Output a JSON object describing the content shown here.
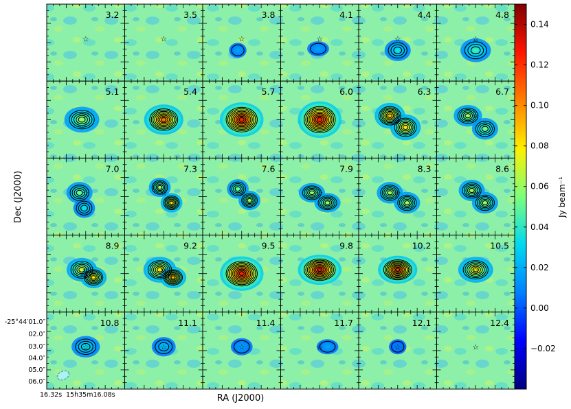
{
  "figure": {
    "xlabel": "RA (J2000)",
    "ylabel": "Dec (J2000)",
    "colorbar_label": "Jy beam⁻¹",
    "ra_ticks": [
      "16.32s",
      "15h35m16.08s"
    ],
    "dec_ticks": [
      "-25°44′01.0″",
      "02.0″",
      "03.0″",
      "04.0″",
      "05.0″",
      "06.0″"
    ],
    "colorbar_ticks": [
      "0.14",
      "0.12",
      "0.10",
      "0.08",
      "0.06",
      "0.04",
      "0.02",
      "0.00",
      "−0.02"
    ],
    "colorbar_values": [
      0.14,
      0.12,
      0.1,
      0.08,
      0.06,
      0.04,
      0.02,
      0.0,
      -0.02
    ],
    "colorbar_range": [
      -0.04,
      0.15
    ],
    "colormap": [
      "#00007f",
      "#0000ff",
      "#0080ff",
      "#00d8f0",
      "#7dff7a",
      "#ffef00",
      "#ff8000",
      "#ff1400",
      "#7f0000"
    ],
    "background_color": "#8cf0a8",
    "contour_color": "#000000"
  },
  "panels": [
    {
      "label": "3.2",
      "peak": 0.0,
      "emission": []
    },
    {
      "label": "3.5",
      "peak": 0.0,
      "emission": []
    },
    {
      "label": "3.8",
      "peak": 0.02,
      "emission": [
        {
          "dx": -0.05,
          "dy": -0.1,
          "rx": 0.08,
          "ry": 0.07,
          "amp": 0.02
        }
      ]
    },
    {
      "label": "4.1",
      "peak": 0.02,
      "emission": [
        {
          "dx": -0.02,
          "dy": -0.08,
          "rx": 0.1,
          "ry": 0.07,
          "amp": 0.02
        }
      ]
    },
    {
      "label": "4.4",
      "peak": 0.04,
      "emission": [
        {
          "dx": 0.0,
          "dy": -0.1,
          "rx": 0.12,
          "ry": 0.1,
          "amp": 0.04
        }
      ]
    },
    {
      "label": "4.8",
      "peak": 0.05,
      "emission": [
        {
          "dx": 0.0,
          "dy": -0.1,
          "rx": 0.14,
          "ry": 0.11,
          "amp": 0.05
        }
      ]
    },
    {
      "label": "5.1",
      "peak": 0.07,
      "emission": [
        {
          "dx": -0.05,
          "dy": 0.0,
          "rx": 0.16,
          "ry": 0.12,
          "amp": 0.07
        }
      ]
    },
    {
      "label": "5.4",
      "peak": 0.12,
      "emission": [
        {
          "dx": 0.0,
          "dy": 0.0,
          "rx": 0.18,
          "ry": 0.14,
          "amp": 0.12
        }
      ]
    },
    {
      "label": "5.7",
      "peak": 0.14,
      "emission": [
        {
          "dx": 0.0,
          "dy": 0.0,
          "rx": 0.2,
          "ry": 0.16,
          "amp": 0.14
        }
      ]
    },
    {
      "label": "6.0",
      "peak": 0.14,
      "emission": [
        {
          "dx": 0.0,
          "dy": 0.0,
          "rx": 0.2,
          "ry": 0.17,
          "amp": 0.14
        }
      ]
    },
    {
      "label": "6.3",
      "peak": 0.1,
      "emission": [
        {
          "dx": -0.1,
          "dy": 0.05,
          "rx": 0.14,
          "ry": 0.12,
          "amp": 0.1
        },
        {
          "dx": 0.1,
          "dy": -0.1,
          "rx": 0.14,
          "ry": 0.12,
          "amp": 0.09
        }
      ]
    },
    {
      "label": "6.7",
      "peak": 0.07,
      "emission": [
        {
          "dx": -0.1,
          "dy": 0.05,
          "rx": 0.13,
          "ry": 0.1,
          "amp": 0.07
        },
        {
          "dx": 0.12,
          "dy": -0.12,
          "rx": 0.12,
          "ry": 0.1,
          "amp": 0.06
        }
      ]
    },
    {
      "label": "7.0",
      "peak": 0.06,
      "emission": [
        {
          "dx": -0.08,
          "dy": 0.05,
          "rx": 0.12,
          "ry": 0.1,
          "amp": 0.06
        },
        {
          "dx": -0.02,
          "dy": -0.15,
          "rx": 0.1,
          "ry": 0.09,
          "amp": 0.04
        }
      ]
    },
    {
      "label": "7.3",
      "peak": 0.09,
      "emission": [
        {
          "dx": -0.05,
          "dy": 0.12,
          "rx": 0.1,
          "ry": 0.09,
          "amp": 0.07
        },
        {
          "dx": 0.1,
          "dy": -0.08,
          "rx": 0.1,
          "ry": 0.09,
          "amp": 0.09
        }
      ]
    },
    {
      "label": "7.6",
      "peak": 0.07,
      "emission": [
        {
          "dx": -0.05,
          "dy": 0.1,
          "rx": 0.1,
          "ry": 0.09,
          "amp": 0.06
        },
        {
          "dx": 0.1,
          "dy": -0.05,
          "rx": 0.1,
          "ry": 0.09,
          "amp": 0.07
        }
      ]
    },
    {
      "label": "7.9",
      "peak": 0.07,
      "emission": [
        {
          "dx": -0.1,
          "dy": 0.05,
          "rx": 0.12,
          "ry": 0.09,
          "amp": 0.07
        },
        {
          "dx": 0.1,
          "dy": -0.08,
          "rx": 0.12,
          "ry": 0.09,
          "amp": 0.07
        }
      ]
    },
    {
      "label": "8.3",
      "peak": 0.07,
      "emission": [
        {
          "dx": -0.1,
          "dy": 0.05,
          "rx": 0.12,
          "ry": 0.1,
          "amp": 0.07
        },
        {
          "dx": 0.12,
          "dy": -0.08,
          "rx": 0.12,
          "ry": 0.1,
          "amp": 0.07
        }
      ]
    },
    {
      "label": "8.6",
      "peak": 0.07,
      "emission": [
        {
          "dx": -0.05,
          "dy": 0.08,
          "rx": 0.12,
          "ry": 0.1,
          "amp": 0.07
        },
        {
          "dx": 0.12,
          "dy": -0.08,
          "rx": 0.12,
          "ry": 0.1,
          "amp": 0.07
        }
      ]
    },
    {
      "label": "8.9",
      "peak": 0.09,
      "emission": [
        {
          "dx": -0.05,
          "dy": 0.05,
          "rx": 0.14,
          "ry": 0.11,
          "amp": 0.08
        },
        {
          "dx": 0.1,
          "dy": -0.05,
          "rx": 0.12,
          "ry": 0.1,
          "amp": 0.09
        }
      ]
    },
    {
      "label": "9.2",
      "peak": 0.1,
      "emission": [
        {
          "dx": -0.05,
          "dy": 0.05,
          "rx": 0.15,
          "ry": 0.12,
          "amp": 0.09
        },
        {
          "dx": 0.12,
          "dy": -0.05,
          "rx": 0.12,
          "ry": 0.1,
          "amp": 0.1
        }
      ]
    },
    {
      "label": "9.5",
      "peak": 0.14,
      "emission": [
        {
          "dx": 0.0,
          "dy": 0.0,
          "rx": 0.2,
          "ry": 0.16,
          "amp": 0.14
        }
      ]
    },
    {
      "label": "9.8",
      "peak": 0.14,
      "emission": [
        {
          "dx": 0.0,
          "dy": 0.05,
          "rx": 0.2,
          "ry": 0.14,
          "amp": 0.14
        }
      ]
    },
    {
      "label": "10.2",
      "peak": 0.13,
      "emission": [
        {
          "dx": 0.0,
          "dy": 0.05,
          "rx": 0.18,
          "ry": 0.13,
          "amp": 0.13
        }
      ]
    },
    {
      "label": "10.5",
      "peak": 0.09,
      "emission": [
        {
          "dx": 0.0,
          "dy": 0.05,
          "rx": 0.16,
          "ry": 0.12,
          "amp": 0.09
        }
      ]
    },
    {
      "label": "10.8",
      "peak": 0.04,
      "emission": [
        {
          "dx": 0.0,
          "dy": 0.05,
          "rx": 0.13,
          "ry": 0.1,
          "amp": 0.04
        }
      ]
    },
    {
      "label": "11.1",
      "peak": 0.03,
      "emission": [
        {
          "dx": 0.0,
          "dy": 0.05,
          "rx": 0.11,
          "ry": 0.09,
          "amp": 0.03
        }
      ]
    },
    {
      "label": "11.4",
      "peak": 0.02,
      "emission": [
        {
          "dx": 0.0,
          "dy": 0.05,
          "rx": 0.1,
          "ry": 0.08,
          "amp": 0.02
        }
      ]
    },
    {
      "label": "11.7",
      "peak": 0.02,
      "emission": [
        {
          "dx": 0.1,
          "dy": 0.05,
          "rx": 0.1,
          "ry": 0.07,
          "amp": 0.02
        }
      ]
    },
    {
      "label": "12.1",
      "peak": 0.01,
      "emission": [
        {
          "dx": 0.0,
          "dy": 0.05,
          "rx": 0.08,
          "ry": 0.07,
          "amp": 0.01
        }
      ]
    },
    {
      "label": "12.4",
      "peak": 0.0,
      "emission": []
    }
  ]
}
